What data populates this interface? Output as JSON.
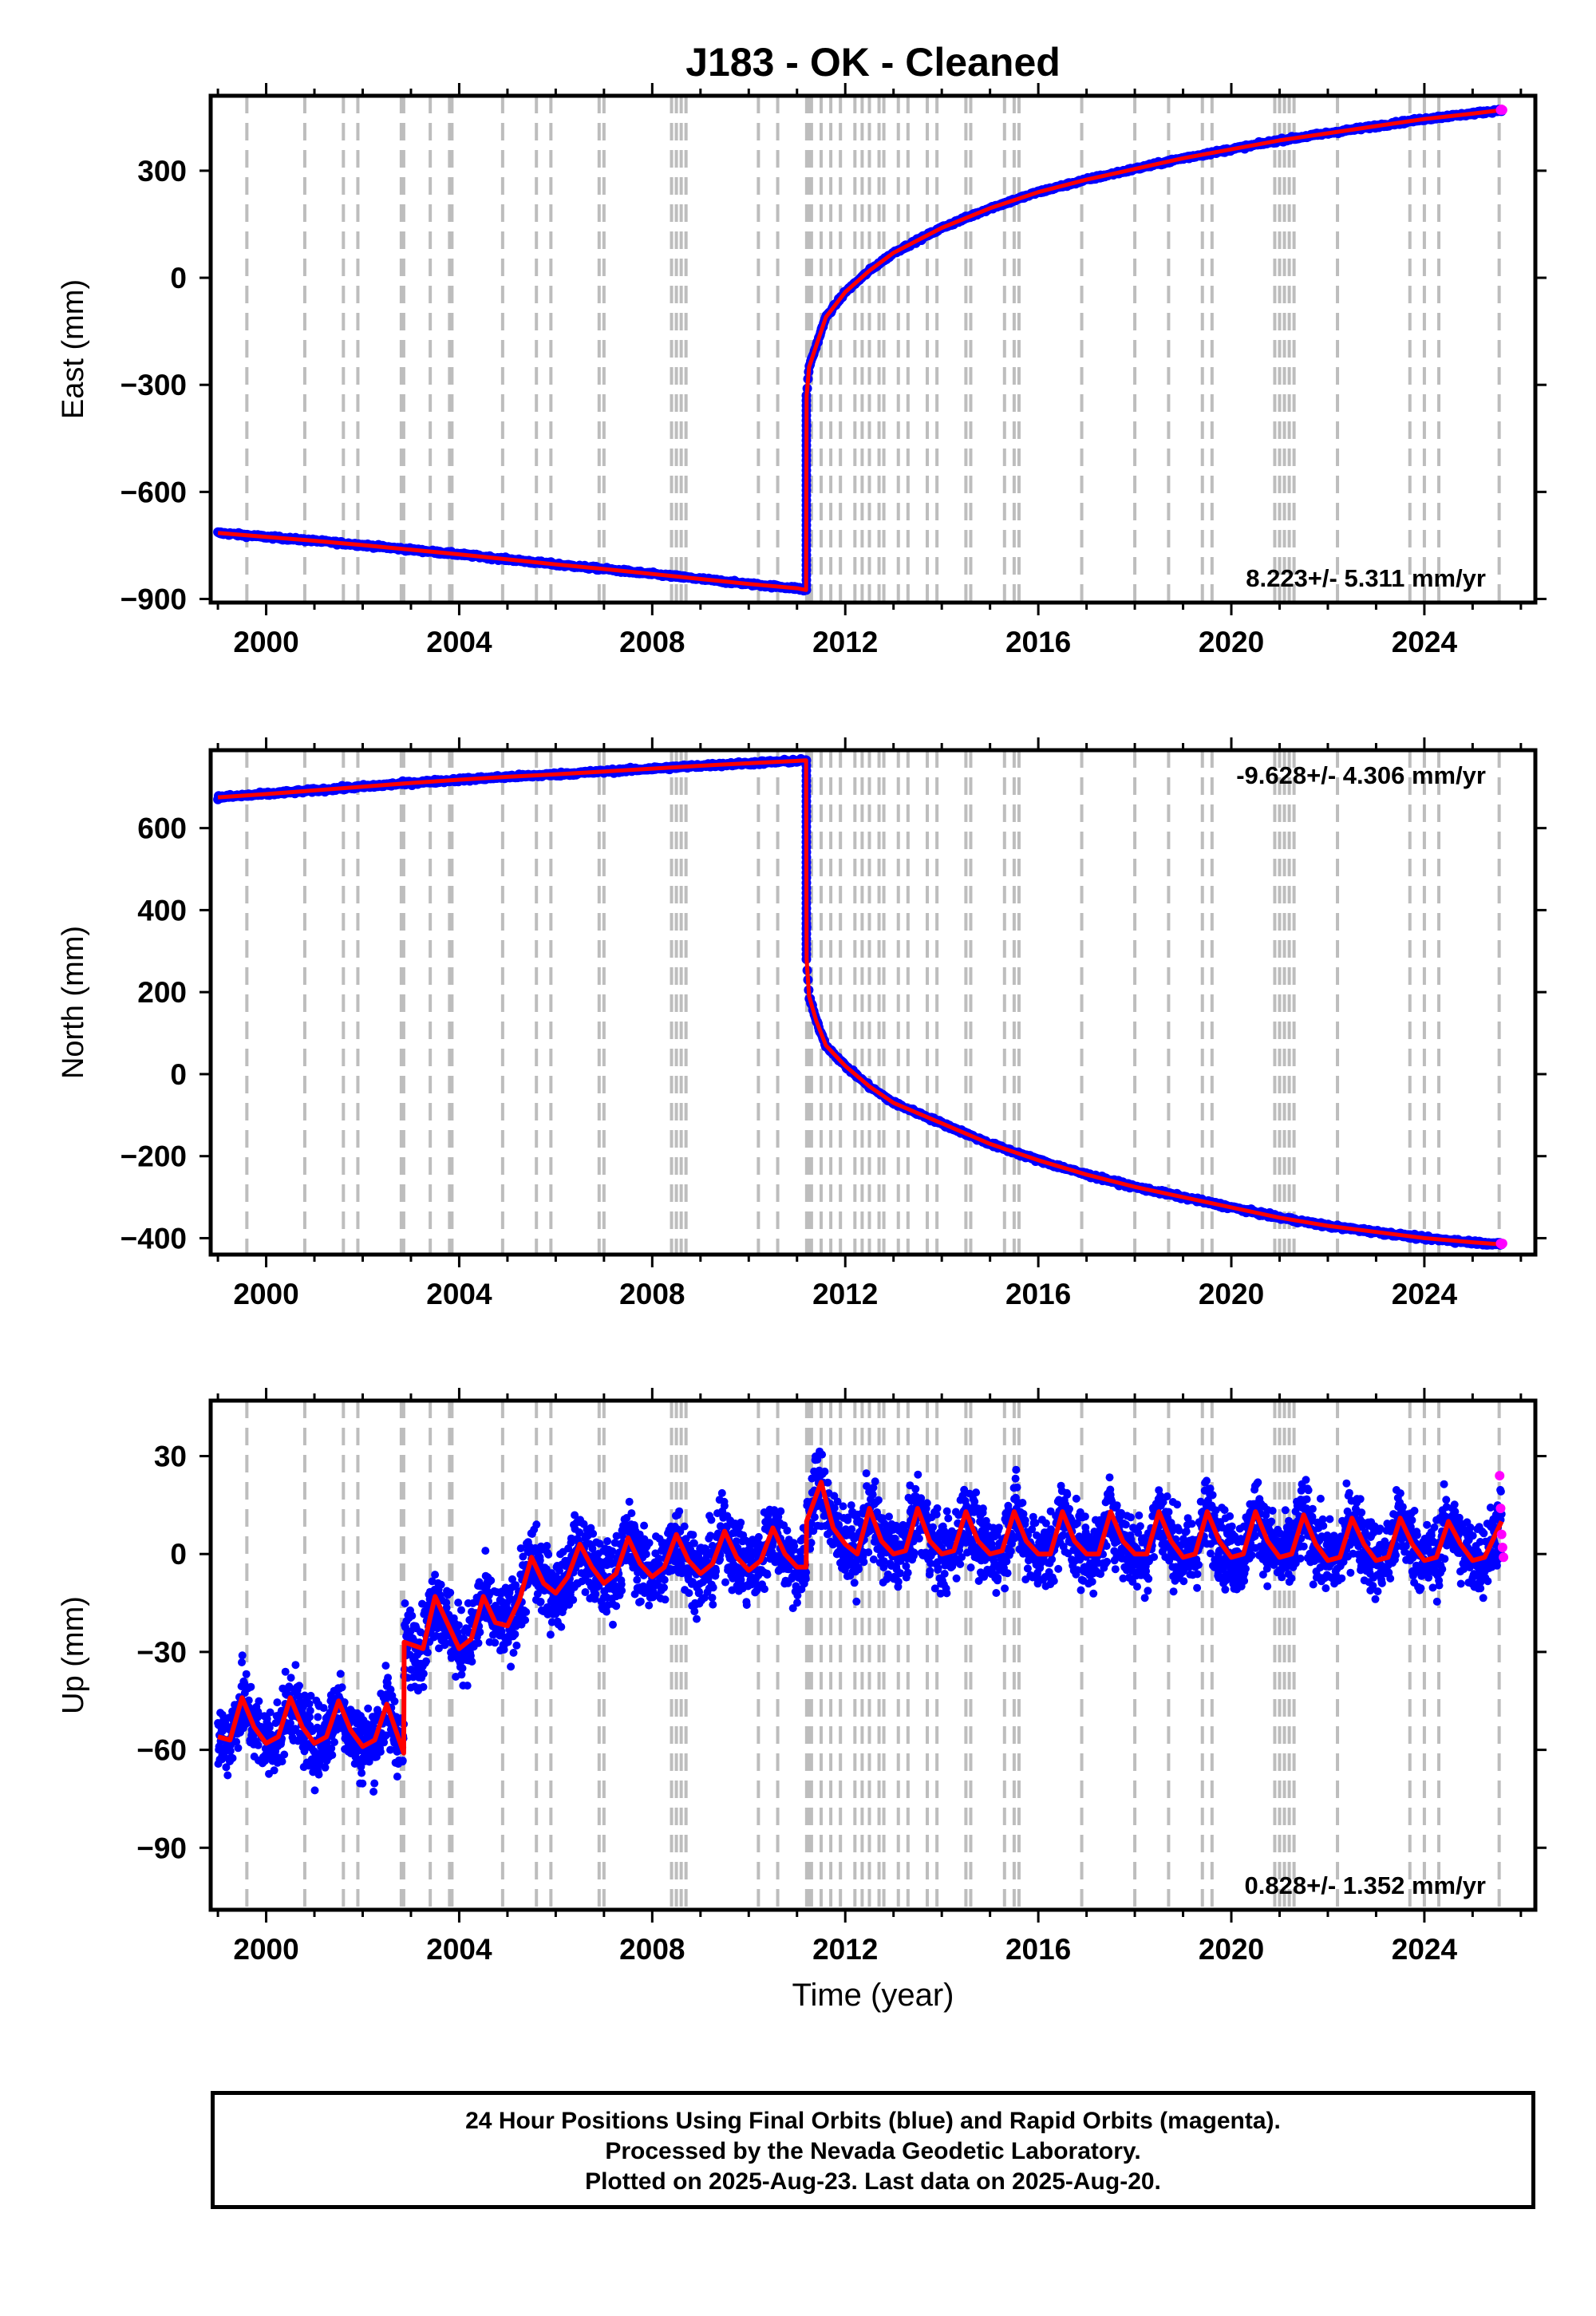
{
  "title": "J183  - OK - Cleaned",
  "colors": {
    "final_orbits": "#0000ff",
    "rapid_orbits": "#ff00ff",
    "model": "#ff0000",
    "event_lines": "#bdbdbd"
  },
  "footer": {
    "line1": "24 Hour Positions Using Final Orbits (blue) and Rapid Orbits (magenta).",
    "line2": "Processed by the Nevada Geodetic Laboratory.",
    "line3": "Plotted on 2025-Aug-23. Last data on 2025-Aug-20."
  },
  "chart_data": [
    {
      "type": "scatter",
      "component": "East",
      "ylabel": "East (mm)",
      "xlabel": "",
      "xlim": [
        1998.85,
        2026.3
      ],
      "ylim": [
        -910,
        510
      ],
      "yticks": [
        -900,
        -600,
        -300,
        0,
        300
      ],
      "xticks": [
        2000,
        2004,
        2008,
        2012,
        2016,
        2020,
        2024
      ],
      "rate_label": "8.223+/- 5.311 mm/yr",
      "rate_position": "bottom-right",
      "event_lines": [
        1999.6,
        2000.8,
        2001.6,
        2001.9,
        2002.8,
        2002.85,
        2003.4,
        2003.8,
        2003.85,
        2004.9,
        2005.6,
        2005.9,
        2006.9,
        2007.0,
        2008.4,
        2008.5,
        2008.6,
        2008.7,
        2010.2,
        2010.6,
        2011.2,
        2011.25,
        2011.3,
        2011.5,
        2011.7,
        2011.9,
        2012.2,
        2012.35,
        2012.5,
        2012.7,
        2012.8,
        2013.1,
        2013.3,
        2013.7,
        2013.9,
        2014.5,
        2014.6,
        2015.3,
        2015.5,
        2015.6,
        2016.9,
        2018.0,
        2018.7,
        2019.4,
        2019.6,
        2020.9,
        2021.0,
        2021.1,
        2021.2,
        2021.3,
        2022.2,
        2023.7,
        2024.0,
        2024.3,
        2025.55
      ],
      "series": [
        {
          "name": "Final Orbits",
          "kind": "scatter",
          "x": [
            1999.0,
            2000.0,
            2001.0,
            2002.0,
            2003.0,
            2004.0,
            2005.0,
            2006.0,
            2007.0,
            2008.0,
            2009.0,
            2010.0,
            2011.0,
            2011.19,
            2011.2,
            2011.25,
            2011.4,
            2011.6,
            2012.0,
            2012.5,
            2013.0,
            2014.0,
            2015.0,
            2016.0,
            2017.0,
            2018.0,
            2019.0,
            2020.0,
            2021.0,
            2022.0,
            2023.0,
            2024.0,
            2025.0,
            2025.6
          ],
          "y": [
            -715,
            -726,
            -737,
            -749,
            -762,
            -775,
            -789,
            -803,
            -816,
            -830,
            -844,
            -858,
            -870,
            -875,
            -330,
            -250,
            -190,
            -110,
            -40,
            20,
            70,
            140,
            195,
            240,
            275,
            305,
            335,
            360,
            385,
            405,
            425,
            445,
            460,
            470
          ]
        },
        {
          "name": "Model",
          "kind": "line",
          "x": [
            1999.0,
            2000.0,
            2001.0,
            2002.0,
            2003.0,
            2004.0,
            2005.0,
            2006.0,
            2007.0,
            2008.0,
            2009.0,
            2010.0,
            2011.0,
            2011.19,
            2011.2,
            2011.25,
            2011.4,
            2011.6,
            2012.0,
            2012.5,
            2013.0,
            2014.0,
            2015.0,
            2016.0,
            2017.0,
            2018.0,
            2019.0,
            2020.0,
            2021.0,
            2022.0,
            2023.0,
            2024.0,
            2025.0,
            2025.6
          ],
          "y": [
            -715,
            -726,
            -737,
            -749,
            -762,
            -775,
            -789,
            -803,
            -816,
            -830,
            -844,
            -858,
            -870,
            -875,
            -330,
            -250,
            -190,
            -110,
            -40,
            20,
            70,
            140,
            195,
            240,
            275,
            305,
            335,
            360,
            385,
            405,
            425,
            445,
            460,
            470
          ]
        },
        {
          "name": "Rapid Orbits",
          "kind": "scatter",
          "x": [
            2025.58,
            2025.6,
            2025.62
          ],
          "y": [
            470,
            472,
            470
          ]
        }
      ]
    },
    {
      "type": "scatter",
      "component": "North",
      "ylabel": "North (mm)",
      "xlabel": "",
      "xlim": [
        1998.85,
        2026.3
      ],
      "ylim": [
        -440,
        790
      ],
      "yticks": [
        -400,
        -200,
        0,
        200,
        400,
        600
      ],
      "xticks": [
        2000,
        2004,
        2008,
        2012,
        2016,
        2020,
        2024
      ],
      "rate_label": "-9.628+/- 4.306 mm/yr",
      "rate_position": "top-right",
      "event_lines": [
        1999.6,
        2000.8,
        2001.6,
        2001.9,
        2002.8,
        2002.85,
        2003.4,
        2003.8,
        2003.85,
        2004.9,
        2005.6,
        2005.9,
        2006.9,
        2007.0,
        2008.4,
        2008.5,
        2008.6,
        2008.7,
        2010.2,
        2010.6,
        2011.2,
        2011.25,
        2011.3,
        2011.5,
        2011.7,
        2011.9,
        2012.2,
        2012.35,
        2012.5,
        2012.7,
        2012.8,
        2013.1,
        2013.3,
        2013.7,
        2013.9,
        2014.5,
        2014.6,
        2015.3,
        2015.5,
        2015.6,
        2016.9,
        2018.0,
        2018.7,
        2019.4,
        2019.6,
        2020.9,
        2021.0,
        2021.1,
        2021.2,
        2021.3,
        2022.2,
        2023.7,
        2024.0,
        2024.3,
        2025.55
      ],
      "series": [
        {
          "name": "Final Orbits",
          "kind": "scatter",
          "x": [
            1999.0,
            2000.0,
            2001.0,
            2002.0,
            2003.0,
            2004.0,
            2005.0,
            2006.0,
            2007.0,
            2008.0,
            2009.0,
            2010.0,
            2011.0,
            2011.19,
            2011.2,
            2011.25,
            2011.4,
            2011.6,
            2012.0,
            2012.5,
            2013.0,
            2014.0,
            2015.0,
            2016.0,
            2017.0,
            2018.0,
            2019.0,
            2020.0,
            2021.0,
            2022.0,
            2023.0,
            2024.0,
            2025.0,
            2025.6
          ],
          "y": [
            675,
            683,
            692,
            701,
            710,
            718,
            725,
            731,
            738,
            745,
            752,
            758,
            764,
            765,
            280,
            190,
            130,
            70,
            20,
            -30,
            -70,
            -120,
            -170,
            -210,
            -245,
            -275,
            -300,
            -325,
            -350,
            -370,
            -385,
            -400,
            -410,
            -415
          ]
        },
        {
          "name": "Model",
          "kind": "line",
          "x": [
            1999.0,
            2000.0,
            2001.0,
            2002.0,
            2003.0,
            2004.0,
            2005.0,
            2006.0,
            2007.0,
            2008.0,
            2009.0,
            2010.0,
            2011.0,
            2011.19,
            2011.2,
            2011.25,
            2011.4,
            2011.6,
            2012.0,
            2012.5,
            2013.0,
            2014.0,
            2015.0,
            2016.0,
            2017.0,
            2018.0,
            2019.0,
            2020.0,
            2021.0,
            2022.0,
            2023.0,
            2024.0,
            2025.0,
            2025.6
          ],
          "y": [
            675,
            683,
            692,
            701,
            710,
            718,
            725,
            731,
            738,
            745,
            752,
            758,
            764,
            765,
            280,
            190,
            130,
            70,
            20,
            -30,
            -70,
            -120,
            -170,
            -210,
            -245,
            -275,
            -300,
            -325,
            -350,
            -370,
            -385,
            -400,
            -410,
            -415
          ]
        },
        {
          "name": "Rapid Orbits",
          "kind": "scatter",
          "x": [
            2025.58,
            2025.6,
            2025.62
          ],
          "y": [
            -413,
            -415,
            -413
          ]
        }
      ]
    },
    {
      "type": "scatter",
      "component": "Up",
      "ylabel": "Up (mm)",
      "xlabel": "Time (year)",
      "xlim": [
        1998.85,
        2026.3
      ],
      "ylim": [
        -109,
        47
      ],
      "yticks": [
        -90,
        -60,
        -30,
        0,
        30
      ],
      "xticks": [
        2000,
        2004,
        2008,
        2012,
        2016,
        2020,
        2024
      ],
      "rate_label": "0.828+/- 1.352 mm/yr",
      "rate_position": "bottom-right",
      "event_lines": [
        1999.6,
        2000.8,
        2001.6,
        2001.9,
        2002.8,
        2002.85,
        2003.4,
        2003.8,
        2003.85,
        2004.9,
        2005.6,
        2005.9,
        2006.9,
        2007.0,
        2008.4,
        2008.5,
        2008.6,
        2008.7,
        2010.2,
        2010.6,
        2011.2,
        2011.25,
        2011.3,
        2011.5,
        2011.7,
        2011.9,
        2012.2,
        2012.35,
        2012.5,
        2012.7,
        2012.8,
        2013.1,
        2013.3,
        2013.7,
        2013.9,
        2014.5,
        2014.6,
        2015.3,
        2015.5,
        2015.6,
        2016.9,
        2018.0,
        2018.7,
        2019.4,
        2019.6,
        2020.9,
        2021.0,
        2021.1,
        2021.2,
        2021.3,
        2022.2,
        2023.7,
        2024.0,
        2024.3,
        2025.55
      ],
      "series": [
        {
          "name": "Final Orbits",
          "kind": "scatter",
          "x": [
            1999.0,
            1999.5,
            2000.0,
            2000.5,
            2001.0,
            2001.5,
            2002.0,
            2002.5,
            2002.8,
            2002.85,
            2003.3,
            2003.8,
            2004.3,
            2004.8,
            2005.3,
            2005.8,
            2006.3,
            2006.8,
            2007.3,
            2007.8,
            2008.3,
            2008.8,
            2009.3,
            2009.8,
            2010.3,
            2010.8,
            2011.1,
            2011.25,
            2011.6,
            2012.0,
            2012.6,
            2013.0,
            2013.6,
            2014.0,
            2014.6,
            2015.0,
            2015.6,
            2016.0,
            2016.6,
            2017.0,
            2017.6,
            2018.0,
            2018.6,
            2019.0,
            2019.6,
            2020.0,
            2020.6,
            2021.0,
            2021.6,
            2022.0,
            2022.6,
            2023.0,
            2023.6,
            2024.0,
            2024.6,
            2025.0,
            2025.6
          ],
          "y": [
            -57,
            -46,
            -57,
            -47,
            -56,
            -47,
            -56,
            -48,
            -60,
            -28,
            -20,
            -32,
            -18,
            -25,
            -16,
            -10,
            -7,
            -2,
            -5,
            1,
            -4,
            3,
            -3,
            4,
            -3,
            5,
            -1,
            14,
            20,
            0,
            12,
            0,
            13,
            0,
            12,
            0,
            13,
            0,
            12,
            0,
            13,
            0,
            12,
            0,
            13,
            0,
            12,
            0,
            12,
            0,
            11,
            0,
            11,
            0,
            10,
            0,
            6
          ]
        },
        {
          "name": "Model",
          "kind": "line",
          "x": [
            1999.0,
            1999.25,
            1999.5,
            1999.75,
            2000.0,
            2000.25,
            2000.5,
            2000.75,
            2001.0,
            2001.25,
            2001.5,
            2001.75,
            2002.0,
            2002.25,
            2002.5,
            2002.85,
            2002.86,
            2003.25,
            2003.5,
            2003.75,
            2004.0,
            2004.25,
            2004.5,
            2004.75,
            2005.0,
            2005.25,
            2005.5,
            2005.75,
            2006.0,
            2006.25,
            2006.5,
            2006.75,
            2007.0,
            2007.25,
            2007.5,
            2007.75,
            2008.0,
            2008.25,
            2008.5,
            2008.75,
            2009.0,
            2009.25,
            2009.5,
            2009.75,
            2010.0,
            2010.25,
            2010.5,
            2010.75,
            2011.0,
            2011.19,
            2011.2,
            2011.5,
            2011.75,
            2012.0,
            2012.25,
            2012.5,
            2012.75,
            2013.0,
            2013.25,
            2013.5,
            2013.75,
            2014.0,
            2014.25,
            2014.5,
            2014.75,
            2015.0,
            2015.25,
            2015.5,
            2015.75,
            2016.0,
            2016.25,
            2016.5,
            2016.75,
            2017.0,
            2017.25,
            2017.5,
            2017.75,
            2018.0,
            2018.25,
            2018.5,
            2018.75,
            2019.0,
            2019.25,
            2019.5,
            2019.75,
            2020.0,
            2020.25,
            2020.5,
            2020.75,
            2021.0,
            2021.25,
            2021.5,
            2021.75,
            2022.0,
            2022.25,
            2022.5,
            2022.75,
            2023.0,
            2023.25,
            2023.5,
            2023.75,
            2024.0,
            2024.25,
            2024.5,
            2024.75,
            2025.0,
            2025.25,
            2025.6
          ],
          "y": [
            -56,
            -57,
            -44,
            -53,
            -58,
            -56,
            -44,
            -53,
            -58,
            -56,
            -45,
            -54,
            -59,
            -57,
            -46,
            -61,
            -27,
            -29,
            -13,
            -21,
            -29,
            -26,
            -13,
            -21,
            -22,
            -14,
            -1,
            -9,
            -12,
            -7,
            3,
            -4,
            -9,
            -6,
            5,
            -3,
            -7,
            -4,
            6,
            -2,
            -6,
            -3,
            7,
            -1,
            -5,
            -2,
            8,
            0,
            -4,
            -4,
            10,
            22,
            8,
            3,
            0,
            14,
            4,
            0,
            1,
            14,
            4,
            0,
            1,
            13,
            4,
            0,
            1,
            13,
            4,
            0,
            0,
            13,
            4,
            0,
            0,
            13,
            4,
            0,
            0,
            13,
            4,
            -1,
            0,
            13,
            4,
            -1,
            0,
            13,
            4,
            -1,
            0,
            12,
            3,
            -2,
            -1,
            11,
            3,
            -2,
            -1,
            11,
            3,
            -2,
            -1,
            10,
            3,
            -2,
            -1,
            10
          ]
        },
        {
          "name": "Rapid Orbits",
          "kind": "scatter",
          "x": [
            2025.56,
            2025.58,
            2025.6,
            2025.62,
            2025.64
          ],
          "y": [
            24,
            14,
            6,
            2,
            -1
          ]
        }
      ]
    }
  ]
}
